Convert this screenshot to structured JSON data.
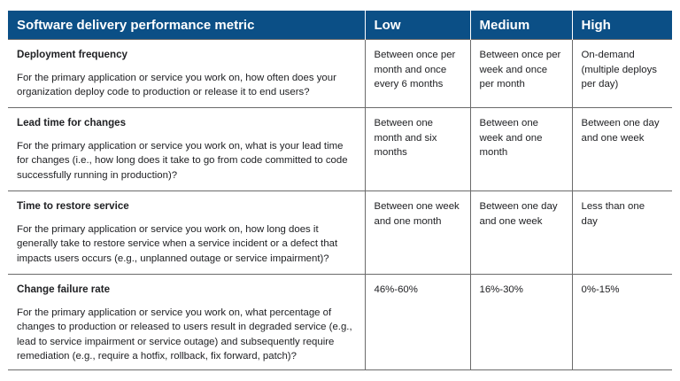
{
  "table": {
    "headers": [
      "Software delivery performance metric",
      "Low",
      "Medium",
      "High"
    ],
    "rows": [
      {
        "metric": "Deployment frequency",
        "description": "For the primary application or service you work on, how often does your organization deploy code to production or release it to end users?",
        "low": "Between once per month and once every 6 months",
        "medium": "Between once per week and once per month",
        "high": "On-demand (multiple deploys per day)"
      },
      {
        "metric": "Lead time for changes",
        "description": "For the primary application or service you work on, what is your lead time for changes (i.e., how long does it take to go from code committed to code successfully running in production)?",
        "low": "Between one month and six months",
        "medium": "Between one week and one month",
        "high": "Between one day and one week"
      },
      {
        "metric": "Time to restore service",
        "description": "For the primary application or service you work on, how long does it generally take to restore service when a service incident or a defect that impacts users occurs (e.g., unplanned outage or service impairment)?",
        "low": "Between one week and one month",
        "medium": "Between one day and one week",
        "high": "Less than one day"
      },
      {
        "metric": "Change failure rate",
        "description": "For the primary application or service you work on, what percentage of changes to production or released to users result in degraded service (e.g., lead to service impairment or service outage) and subsequently require remediation (e.g., require a hotfix, rollback, fix forward, patch)?",
        "low": "46%-60%",
        "medium": "16%-30%",
        "high": "0%-15%"
      }
    ]
  },
  "colors": {
    "header_bg": "#0b4f86",
    "header_text": "#ffffff",
    "border": "#6b6b6b"
  }
}
